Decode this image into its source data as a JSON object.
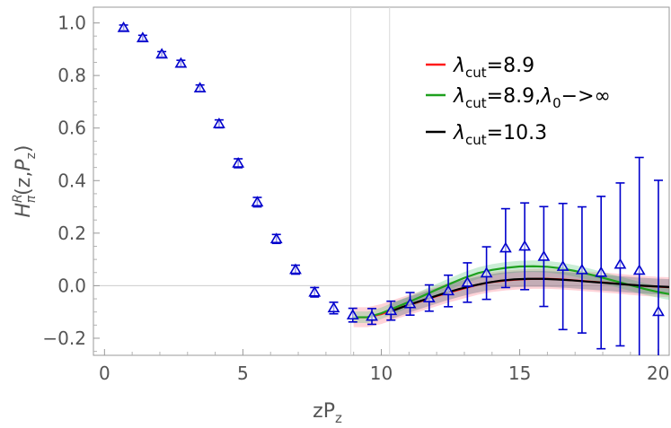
{
  "chart_data": {
    "type": "scatter",
    "xlabel": "zP_z",
    "ylabel": "H_π^R(z,P_z)",
    "xlim": [
      -0.4,
      20.4
    ],
    "ylim": [
      -0.265,
      1.06
    ],
    "grid": false,
    "legend_placement": "top-right",
    "x_ticks": [
      0,
      5,
      10,
      15,
      20
    ],
    "x_tick_labels": [
      "0",
      "5",
      "10",
      "15",
      "20"
    ],
    "y_ticks": [
      1.0,
      0.8,
      0.6,
      0.4,
      0.2,
      0.0,
      -0.2
    ],
    "y_tick_labels": [
      "1.0",
      "0.8",
      "0.6",
      "0.4",
      "0.2",
      "0.0",
      "−0.2"
    ],
    "reference_lines_x": [
      8.9,
      10.3
    ],
    "reference_line_y": 0.0,
    "points": {
      "color": "#0000cc",
      "marker": "triangle",
      "x": [
        0.69,
        1.38,
        2.07,
        2.76,
        3.45,
        4.14,
        4.83,
        5.52,
        6.21,
        6.9,
        7.59,
        8.28,
        8.97,
        9.66,
        10.35,
        11.04,
        11.73,
        12.42,
        13.11,
        13.8,
        14.49,
        15.18,
        15.87,
        16.56,
        17.25,
        17.94,
        18.63,
        19.32,
        20.01
      ],
      "y": [
        0.982,
        0.943,
        0.881,
        0.846,
        0.752,
        0.616,
        0.466,
        0.318,
        0.178,
        0.061,
        -0.025,
        -0.085,
        -0.112,
        -0.117,
        -0.095,
        -0.069,
        -0.047,
        -0.02,
        0.012,
        0.048,
        0.143,
        0.15,
        0.111,
        0.073,
        0.06,
        0.05,
        0.081,
        0.058,
        -0.099
      ],
      "err": [
        0.01,
        0.01,
        0.01,
        0.012,
        0.012,
        0.015,
        0.017,
        0.018,
        0.017,
        0.017,
        0.018,
        0.022,
        0.026,
        0.03,
        0.036,
        0.043,
        0.05,
        0.06,
        0.075,
        0.1,
        0.15,
        0.165,
        0.19,
        0.24,
        0.24,
        0.29,
        0.31,
        0.43,
        0.5
      ]
    },
    "series": [
      {
        "name_parts": {
          "base": "λ",
          "sub": "cut",
          "value": "=8.9"
        },
        "color": "#ff1a1a",
        "band_color": "#ff8090",
        "x": [
          9.0,
          9.5,
          10.0,
          10.5,
          11.0,
          11.5,
          12.0,
          12.5,
          13.0,
          13.5,
          14.0,
          14.5,
          15.0,
          15.5,
          16.0,
          16.5,
          17.0,
          17.5,
          18.0,
          18.5,
          19.0,
          19.5,
          20.0,
          20.4
        ],
        "y": [
          -0.12,
          -0.12,
          -0.108,
          -0.09,
          -0.073,
          -0.057,
          -0.04,
          -0.024,
          -0.01,
          0.004,
          0.014,
          0.02,
          0.024,
          0.026,
          0.026,
          0.024,
          0.02,
          0.016,
          0.012,
          0.008,
          0.003,
          -0.001,
          -0.004,
          -0.006
        ],
        "band": 0.038
      },
      {
        "name_parts": {
          "base": "λ",
          "sub": "cut",
          "value": "=8.9,",
          "base2": "λ",
          "sub2": "0",
          "suffix": "−>∞"
        },
        "color": "#1ea01e",
        "band_color": "#66cc88",
        "x": [
          9.0,
          9.5,
          10.0,
          10.5,
          11.0,
          11.5,
          12.0,
          12.5,
          13.0,
          13.5,
          14.0,
          14.5,
          15.0,
          15.5,
          16.0,
          16.5,
          17.0,
          17.5,
          18.0,
          18.5,
          19.0,
          19.5,
          20.0,
          20.4
        ],
        "y": [
          -0.12,
          -0.12,
          -0.105,
          -0.083,
          -0.062,
          -0.039,
          -0.015,
          0.008,
          0.03,
          0.048,
          0.06,
          0.068,
          0.073,
          0.074,
          0.072,
          0.066,
          0.056,
          0.044,
          0.03,
          0.016,
          0.002,
          -0.012,
          -0.024,
          -0.032
        ],
        "band": 0.022
      },
      {
        "name_parts": {
          "base": "λ",
          "sub": "cut",
          "value": "=10.3"
        },
        "color": "#000000",
        "band_color": "#556677",
        "x": [
          10.3,
          10.8,
          11.3,
          11.8,
          12.3,
          12.8,
          13.3,
          13.8,
          14.3,
          14.8,
          15.3,
          15.8,
          16.3,
          16.8,
          17.3,
          17.8,
          18.3,
          18.8,
          19.3,
          19.8,
          20.4
        ],
        "y": [
          -0.1,
          -0.08,
          -0.062,
          -0.045,
          -0.028,
          -0.013,
          0.0,
          0.011,
          0.019,
          0.024,
          0.026,
          0.026,
          0.024,
          0.021,
          0.017,
          0.013,
          0.009,
          0.005,
          0.001,
          -0.002,
          -0.005
        ],
        "band": 0.03
      }
    ]
  }
}
